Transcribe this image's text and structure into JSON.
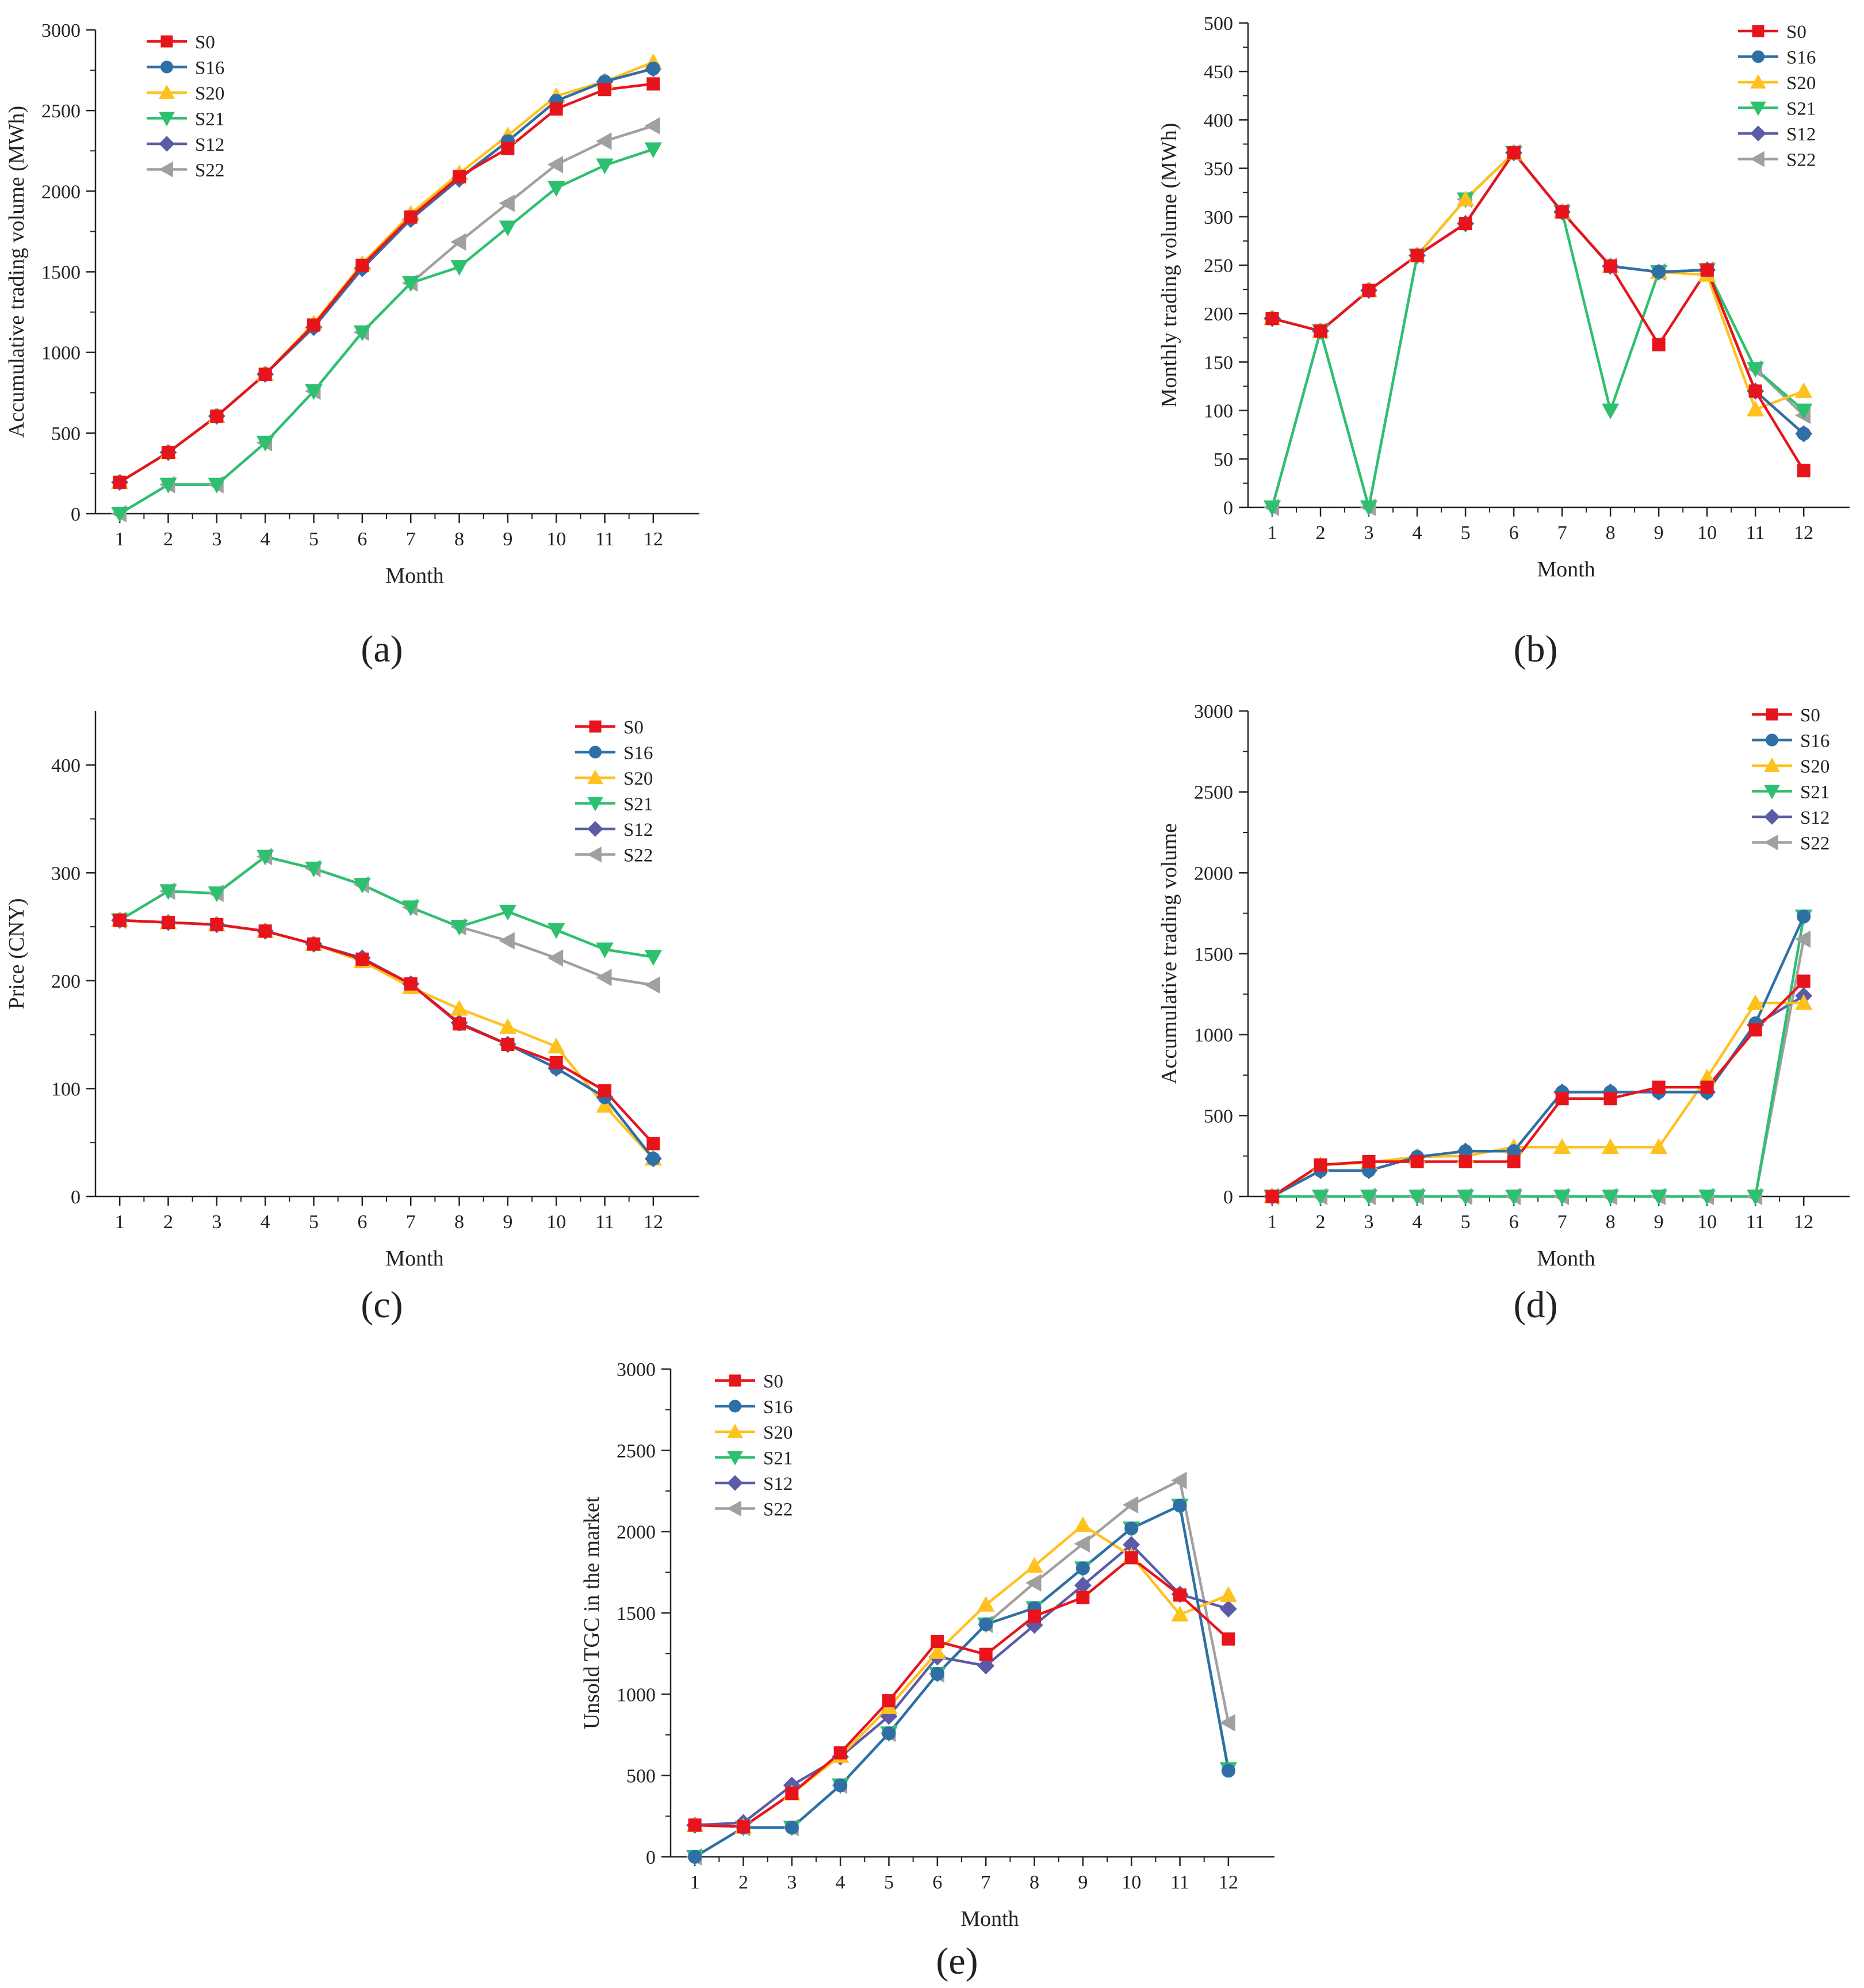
{
  "series_style": [
    {
      "name": "S0",
      "color": "#E8141B",
      "marker": "square"
    },
    {
      "name": "S16",
      "color": "#2E6FA7",
      "marker": "circle"
    },
    {
      "name": "S20",
      "color": "#FFC11E",
      "marker": "triangle-up"
    },
    {
      "name": "S21",
      "color": "#2DC06E",
      "marker": "triangle-down"
    },
    {
      "name": "S12",
      "color": "#5B5BA8",
      "marker": "diamond"
    },
    {
      "name": "S22",
      "color": "#A0A0A0",
      "marker": "triangle-left"
    }
  ],
  "chart_data": [
    {
      "id": "a",
      "panel_label": "(a)",
      "type": "line",
      "xlabel": "Month",
      "ylabel": "Accumulative trading volume (MWh)",
      "x": [
        1,
        2,
        3,
        4,
        5,
        6,
        7,
        8,
        9,
        10,
        11,
        12
      ],
      "ylim": [
        0,
        3000
      ],
      "yticks": [
        0,
        500,
        1000,
        1500,
        2000,
        2500,
        3000
      ],
      "legend_position": "top-left",
      "series": [
        {
          "name": "S0",
          "values": [
            195,
            380,
            605,
            865,
            1170,
            1540,
            1840,
            2090,
            2265,
            2510,
            2630,
            2665
          ]
        },
        {
          "name": "S16",
          "values": [
            195,
            380,
            605,
            865,
            1160,
            1525,
            1830,
            2080,
            2310,
            2560,
            2680,
            2760
          ]
        },
        {
          "name": "S20",
          "values": [
            195,
            380,
            605,
            865,
            1180,
            1550,
            1860,
            2110,
            2345,
            2590,
            2680,
            2800
          ]
        },
        {
          "name": "S21",
          "values": [
            0,
            180,
            180,
            440,
            760,
            1125,
            1430,
            1530,
            1775,
            2020,
            2160,
            2260
          ]
        },
        {
          "name": "S12",
          "values": [
            195,
            380,
            605,
            865,
            1155,
            1520,
            1825,
            2075,
            2310,
            2560,
            2680,
            2760
          ]
        },
        {
          "name": "S22",
          "values": [
            0,
            180,
            180,
            440,
            760,
            1125,
            1430,
            1685,
            1925,
            2165,
            2310,
            2405
          ]
        }
      ]
    },
    {
      "id": "b",
      "panel_label": "(b)",
      "type": "line",
      "xlabel": "Month",
      "ylabel": "Monthly trading volume (MWh)",
      "x": [
        1,
        2,
        3,
        4,
        5,
        6,
        7,
        8,
        9,
        10,
        11,
        12
      ],
      "ylim": [
        0,
        500
      ],
      "yticks": [
        0,
        50,
        100,
        150,
        200,
        250,
        300,
        350,
        400,
        450,
        500
      ],
      "legend_position": "top-right",
      "series": [
        {
          "name": "S0",
          "values": [
            195,
            182,
            224,
            260,
            293,
            366,
            305,
            249,
            168,
            245,
            120,
            38
          ]
        },
        {
          "name": "S16",
          "values": [
            195,
            182,
            224,
            260,
            293,
            366,
            305,
            249,
            243,
            245,
            120,
            76
          ]
        },
        {
          "name": "S20",
          "values": [
            195,
            182,
            224,
            260,
            318,
            366,
            305,
            249,
            243,
            240,
            101,
            120
          ]
        },
        {
          "name": "S21",
          "values": [
            0,
            182,
            0,
            260,
            318,
            366,
            305,
            100,
            243,
            245,
            143,
            100
          ]
        },
        {
          "name": "S12",
          "values": [
            195,
            182,
            224,
            260,
            293,
            366,
            305,
            249,
            243,
            245,
            120,
            76
          ]
        },
        {
          "name": "S22",
          "values": [
            0,
            182,
            0,
            260,
            318,
            366,
            305,
            249,
            243,
            245,
            143,
            95
          ]
        }
      ]
    },
    {
      "id": "c",
      "panel_label": "(c)",
      "type": "line",
      "xlabel": "Month",
      "ylabel": "Price (CNY)",
      "x": [
        1,
        2,
        3,
        4,
        5,
        6,
        7,
        8,
        9,
        10,
        11,
        12
      ],
      "ylim": [
        0,
        450
      ],
      "yticks": [
        0,
        100,
        200,
        300,
        400
      ],
      "legend_position": "top-right",
      "series": [
        {
          "name": "S0",
          "values": [
            256,
            254,
            252,
            246,
            234,
            220,
            197,
            160,
            141,
            124,
            98,
            49
          ]
        },
        {
          "name": "S16",
          "values": [
            256,
            254,
            252,
            246,
            234,
            220,
            197,
            160,
            141,
            119,
            92,
            35
          ]
        },
        {
          "name": "S20",
          "values": [
            256,
            254,
            252,
            246,
            234,
            218,
            194,
            174,
            157,
            139,
            84,
            35
          ]
        },
        {
          "name": "S21",
          "values": [
            256,
            283,
            281,
            315,
            304,
            289,
            268,
            250,
            264,
            247,
            229,
            222
          ]
        },
        {
          "name": "S12",
          "values": [
            256,
            254,
            252,
            246,
            234,
            221,
            197,
            161,
            141,
            119,
            92,
            35
          ]
        },
        {
          "name": "S22",
          "values": [
            256,
            283,
            281,
            315,
            304,
            289,
            268,
            250,
            237,
            221,
            203,
            196
          ]
        }
      ]
    },
    {
      "id": "d",
      "panel_label": "(d)",
      "type": "line",
      "xlabel": "Month",
      "ylabel": "Accumulative trading volume",
      "x": [
        1,
        2,
        3,
        4,
        5,
        6,
        7,
        8,
        9,
        10,
        11,
        12
      ],
      "ylim": [
        0,
        3000
      ],
      "yticks": [
        0,
        500,
        1000,
        1500,
        2000,
        2500,
        3000
      ],
      "legend_position": "top-right",
      "series": [
        {
          "name": "S0",
          "values": [
            0,
            195,
            215,
            215,
            215,
            215,
            605,
            605,
            675,
            675,
            1030,
            1330
          ]
        },
        {
          "name": "S16",
          "values": [
            0,
            160,
            160,
            245,
            280,
            280,
            645,
            645,
            645,
            645,
            1070,
            1730
          ]
        },
        {
          "name": "S20",
          "values": [
            0,
            195,
            210,
            245,
            250,
            305,
            305,
            305,
            305,
            735,
            1195,
            1195
          ]
        },
        {
          "name": "S21",
          "values": [
            0,
            0,
            0,
            0,
            0,
            0,
            0,
            0,
            0,
            0,
            0,
            1730
          ]
        },
        {
          "name": "S12",
          "values": [
            0,
            160,
            160,
            245,
            280,
            280,
            645,
            645,
            645,
            645,
            1060,
            1240
          ]
        },
        {
          "name": "S22",
          "values": [
            0,
            0,
            0,
            0,
            0,
            0,
            0,
            0,
            0,
            0,
            0,
            1590
          ]
        }
      ]
    },
    {
      "id": "e",
      "panel_label": "(e)",
      "type": "line",
      "xlabel": "Month",
      "ylabel": "Unsold TGC in the market",
      "x": [
        1,
        2,
        3,
        4,
        5,
        6,
        7,
        8,
        9,
        10,
        11,
        12
      ],
      "ylim": [
        0,
        3000
      ],
      "yticks": [
        0,
        500,
        1000,
        1500,
        2000,
        2500,
        3000
      ],
      "legend_position": "top-left",
      "series": [
        {
          "name": "S0",
          "values": [
            195,
            185,
            390,
            640,
            960,
            1325,
            1245,
            1480,
            1595,
            1840,
            1610,
            1340
          ]
        },
        {
          "name": "S16",
          "values": [
            0,
            180,
            180,
            440,
            760,
            1125,
            1430,
            1530,
            1775,
            2020,
            2160,
            530
          ]
        },
        {
          "name": "S20",
          "values": [
            195,
            185,
            390,
            620,
            920,
            1260,
            1550,
            1790,
            2040,
            1850,
            1490,
            1610
          ]
        },
        {
          "name": "S21",
          "values": [
            0,
            180,
            180,
            440,
            760,
            1125,
            1430,
            1530,
            1775,
            2020,
            2160,
            540
          ]
        },
        {
          "name": "S12",
          "values": [
            195,
            210,
            440,
            615,
            865,
            1230,
            1175,
            1425,
            1670,
            1920,
            1615,
            1525
          ]
        },
        {
          "name": "S22",
          "values": [
            0,
            180,
            180,
            440,
            760,
            1125,
            1430,
            1685,
            1925,
            2165,
            2315,
            825
          ]
        }
      ]
    }
  ]
}
